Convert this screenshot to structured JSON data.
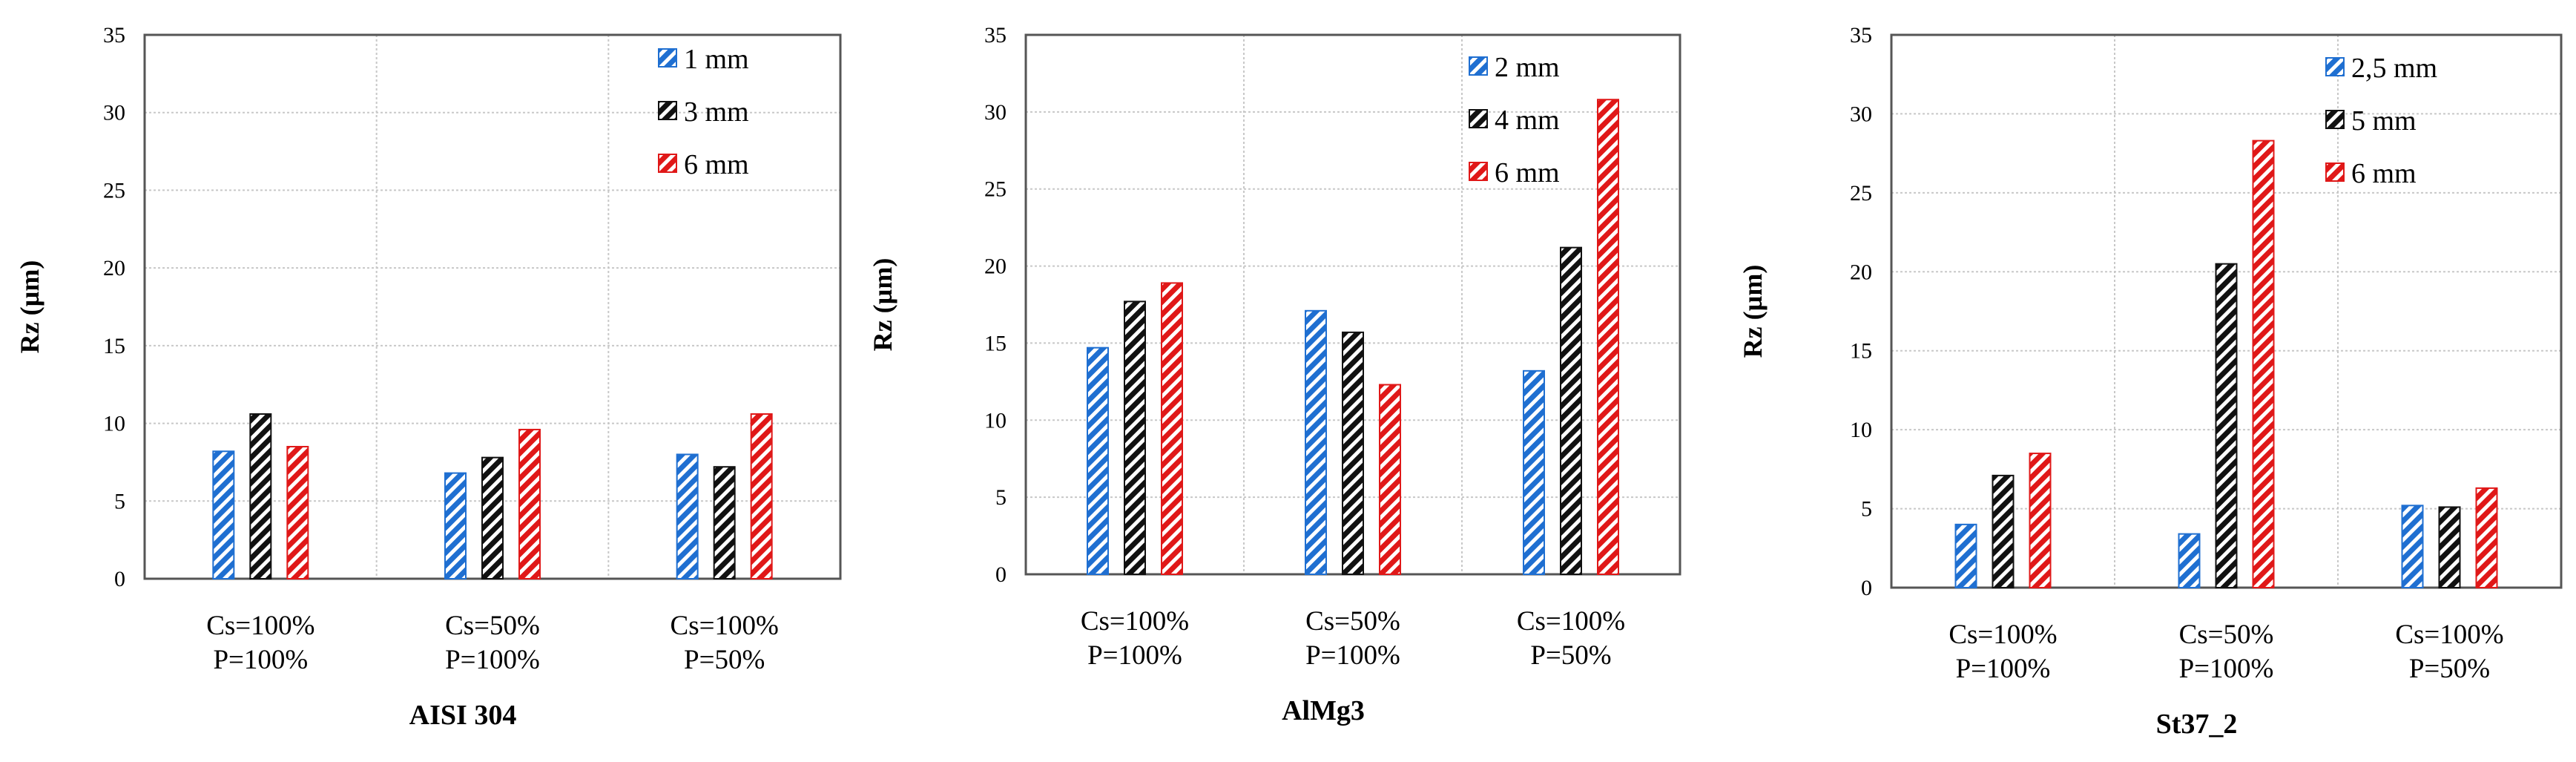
{
  "colors": {
    "blue": "#1f6fd1",
    "black": "#111111",
    "red": "#e01818",
    "grid": "#c8c8c8",
    "axis": "#000000"
  },
  "chart_data": [
    {
      "type": "bar",
      "title": "AISI 304",
      "xlabel": "AISI 304",
      "ylabel": "Rz (µm)",
      "ylim": [
        0,
        35
      ],
      "yticks": [
        "0",
        "5",
        "10",
        "15",
        "20",
        "25",
        "30",
        "35"
      ],
      "categories": [
        {
          "line1": "Cs=100%",
          "line2": "P=100%"
        },
        {
          "line1": "Cs=50%",
          "line2": "P=100%"
        },
        {
          "line1": "Cs=100%",
          "line2": "P=50%"
        }
      ],
      "series": [
        {
          "name": "1 mm",
          "color": "blue",
          "values": [
            8.2,
            6.8,
            8.0
          ]
        },
        {
          "name": "3 mm",
          "color": "black",
          "values": [
            10.6,
            7.8,
            7.2
          ]
        },
        {
          "name": "6 mm",
          "color": "red",
          "values": [
            8.5,
            9.6,
            10.6
          ]
        }
      ],
      "legend": "top-right",
      "grid": true
    },
    {
      "type": "bar",
      "title": "AlMg3",
      "xlabel": "AlMg3",
      "ylabel": "Rz (µm)",
      "ylim": [
        0,
        35
      ],
      "yticks": [
        "0",
        "5",
        "10",
        "15",
        "20",
        "25",
        "30",
        "35"
      ],
      "categories": [
        {
          "line1": "Cs=100%",
          "line2": "P=100%"
        },
        {
          "line1": "Cs=50%",
          "line2": "P=100%"
        },
        {
          "line1": "Cs=100%",
          "line2": "P=50%"
        }
      ],
      "series": [
        {
          "name": "2 mm",
          "color": "blue",
          "values": [
            14.7,
            17.1,
            13.2
          ]
        },
        {
          "name": "4 mm",
          "color": "black",
          "values": [
            17.7,
            15.7,
            21.2
          ]
        },
        {
          "name": "6 mm",
          "color": "red",
          "values": [
            18.9,
            12.3,
            30.8
          ]
        }
      ],
      "legend": "top-right",
      "grid": true
    },
    {
      "type": "bar",
      "title": "St37_2",
      "xlabel": "St37_2",
      "ylabel": "Rz (µm)",
      "ylim": [
        0,
        35
      ],
      "yticks": [
        "0",
        "5",
        "10",
        "15",
        "20",
        "25",
        "30",
        "35"
      ],
      "categories": [
        {
          "line1": "Cs=100%",
          "line2": "P=100%"
        },
        {
          "line1": "Cs=50%",
          "line2": "P=100%"
        },
        {
          "line1": "Cs=100%",
          "line2": "P=50%"
        }
      ],
      "series": [
        {
          "name": "2,5 mm",
          "color": "blue",
          "values": [
            4.0,
            3.4,
            5.2
          ]
        },
        {
          "name": "5 mm",
          "color": "black",
          "values": [
            7.1,
            20.5,
            5.1
          ]
        },
        {
          "name": "6 mm",
          "color": "red",
          "values": [
            8.5,
            28.3,
            6.3
          ]
        }
      ],
      "legend": "top-right",
      "grid": true
    }
  ]
}
